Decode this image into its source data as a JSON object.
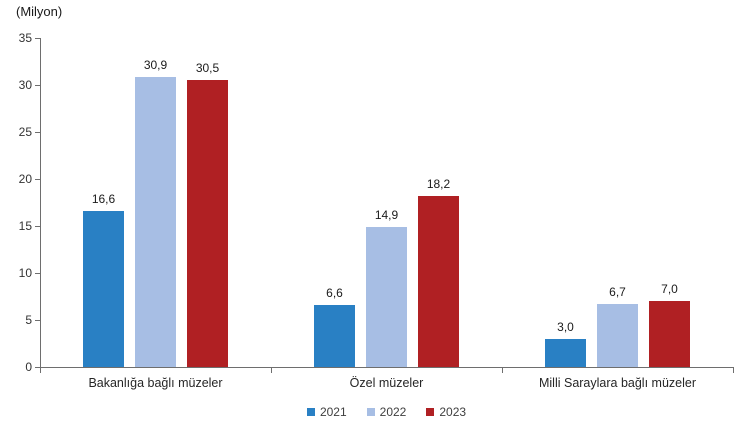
{
  "unit_label": "(Milyon)",
  "colors": {
    "axis": "#6e6e6e",
    "tick_text": "#333333",
    "value_text": "#1a1a1a",
    "category_text": "#262626",
    "legend_text": "#404040",
    "background": "#ffffff"
  },
  "chart_data": {
    "type": "bar",
    "title": "",
    "xlabel": "",
    "ylabel": "(Milyon)",
    "categories": [
      "Bakanlığa bağlı müzeler",
      "Özel müzeler",
      "Milli Saraylara bağlı müzeler"
    ],
    "series": [
      {
        "name": "2021",
        "color": "#2980c4",
        "values": [
          16.6,
          6.6,
          3.0
        ]
      },
      {
        "name": "2022",
        "color": "#a7bee4",
        "values": [
          30.9,
          14.9,
          6.7
        ]
      },
      {
        "name": "2023",
        "color": "#b02023",
        "values": [
          30.5,
          18.2,
          7.0
        ]
      }
    ],
    "ylim": [
      0,
      35
    ],
    "yticks": [
      0,
      5,
      10,
      15,
      20,
      25,
      30,
      35
    ],
    "grid": false,
    "legend_position": "bottom",
    "decimal_separator": ","
  }
}
